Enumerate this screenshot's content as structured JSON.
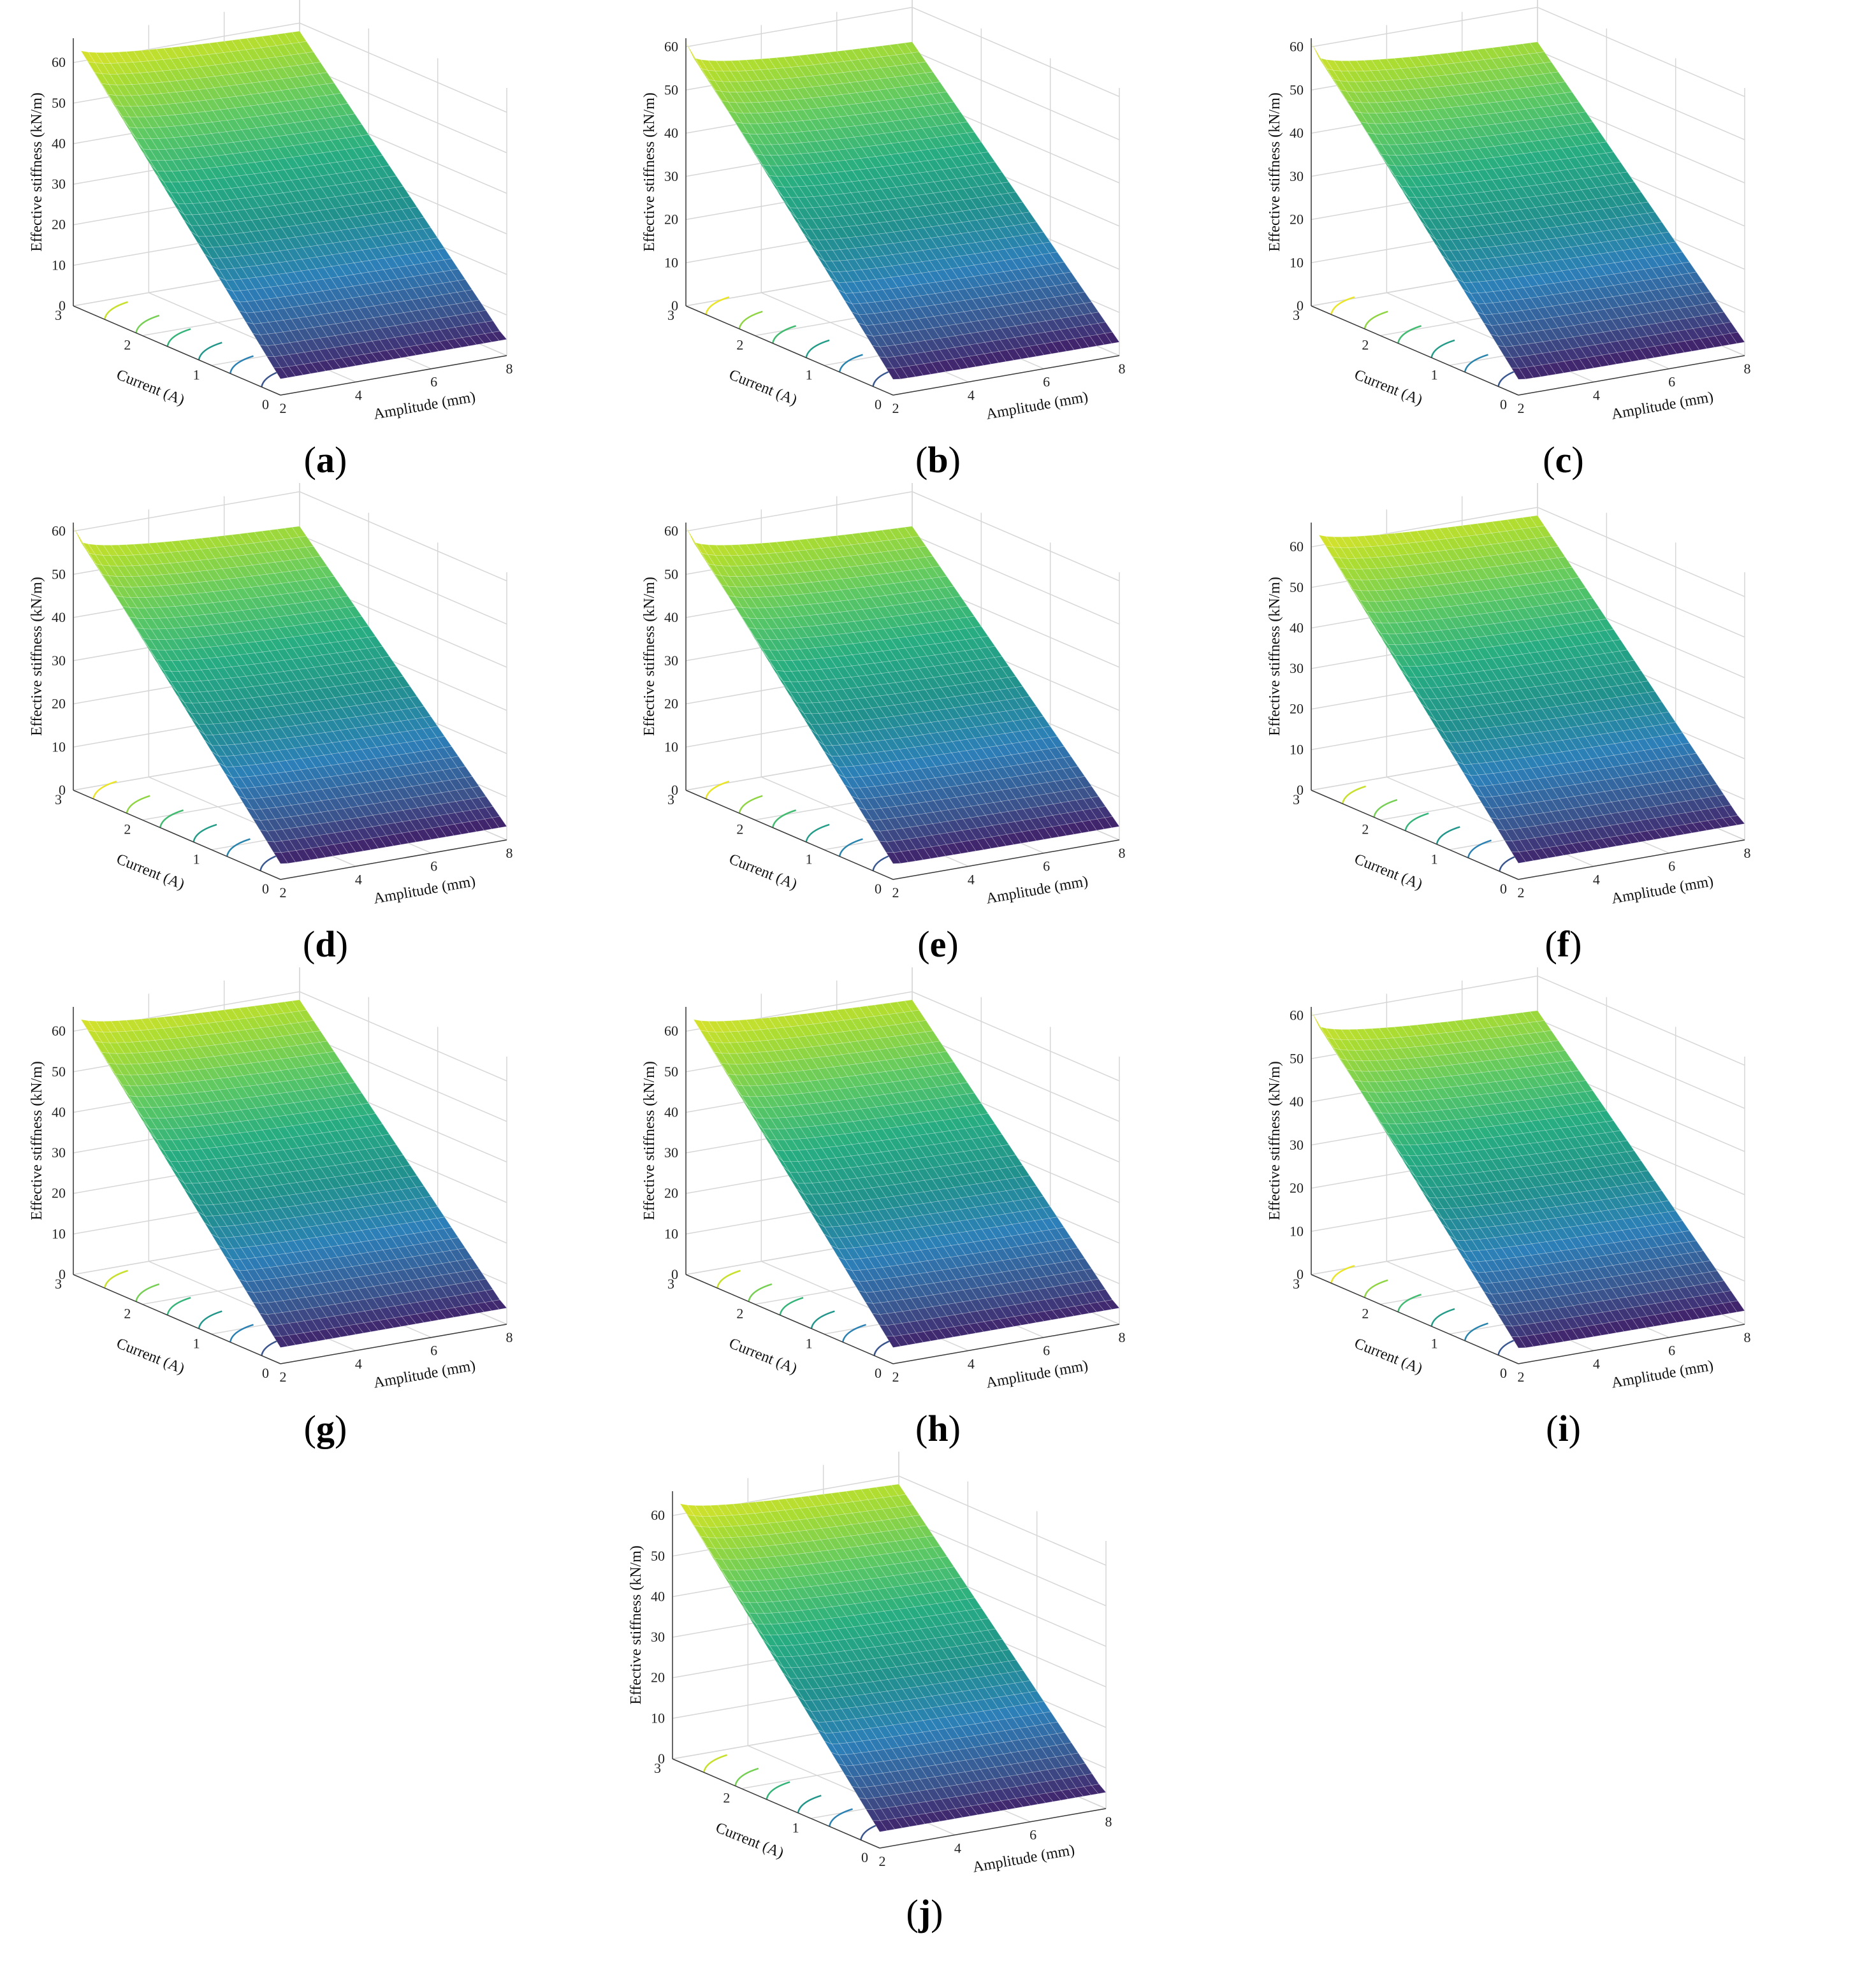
{
  "colors": {
    "grid": "#d6d6d6",
    "axis": "#3a3a3a",
    "mesh_line": "#ffffff",
    "colormap": [
      "#440154",
      "#3b528b",
      "#2c7fb8",
      "#21918c",
      "#27ad81",
      "#5ec962",
      "#aadc32",
      "#fde725"
    ]
  },
  "chart_data": [
    {
      "panel_label": "a",
      "type": "surface3d",
      "zlabel": "Effective stiffness (kN/m)",
      "ylabel": "Current (A)",
      "xlabel": "Amplitude (mm)",
      "x_ticks": [
        2,
        4,
        6,
        8
      ],
      "y_ticks": [
        0,
        1,
        2,
        3
      ],
      "z_ticks": [
        0,
        10,
        20,
        30,
        40,
        50,
        60
      ],
      "xlim": [
        2,
        8
      ],
      "ylim": [
        0,
        3
      ],
      "zlim": [
        0,
        66
      ],
      "corner_values": {
        "max": 66,
        "ridge_low_current_high_amplitude": 58,
        "min": 4
      }
    },
    {
      "panel_label": "b",
      "type": "surface3d",
      "zlabel": "Effective stiffness (kN/m)",
      "ylabel": "Current (A)",
      "xlabel": "Amplitude (mm)",
      "x_ticks": [
        2,
        4,
        6,
        8
      ],
      "y_ticks": [
        0,
        1,
        2,
        3
      ],
      "z_ticks": [
        0,
        10,
        20,
        30,
        40,
        50,
        60
      ],
      "xlim": [
        2,
        8
      ],
      "ylim": [
        0,
        3
      ],
      "zlim": [
        0,
        62
      ],
      "corner_values": {
        "max": 61,
        "ridge_low_current_high_amplitude": 52,
        "min": 2
      }
    },
    {
      "panel_label": "c",
      "type": "surface3d",
      "zlabel": "Effective stiffness (kN/m)",
      "ylabel": "Current (A)",
      "xlabel": "Amplitude (mm)",
      "x_ticks": [
        2,
        4,
        6,
        8
      ],
      "y_ticks": [
        0,
        1,
        2,
        3
      ],
      "z_ticks": [
        0,
        10,
        20,
        30,
        40,
        50,
        60
      ],
      "xlim": [
        2,
        8
      ],
      "ylim": [
        0,
        3
      ],
      "zlim": [
        0,
        62
      ],
      "corner_values": {
        "max": 61,
        "ridge_low_current_high_amplitude": 52,
        "min": 2
      }
    },
    {
      "panel_label": "d",
      "type": "surface3d",
      "zlabel": "Effective stiffness (kN/m)",
      "ylabel": "Current (A)",
      "xlabel": "Amplitude (mm)",
      "x_ticks": [
        2,
        4,
        6,
        8
      ],
      "y_ticks": [
        0,
        1,
        2,
        3
      ],
      "z_ticks": [
        0,
        10,
        20,
        30,
        40,
        50,
        60
      ],
      "xlim": [
        2,
        8
      ],
      "ylim": [
        0,
        62
      ],
      "zlim": [
        0,
        62
      ],
      "corner_values": {
        "max": 61,
        "ridge_low_current_high_amplitude": 52,
        "min": 2
      }
    },
    {
      "panel_label": "e",
      "type": "surface3d",
      "zlabel": "Effective stiffness (kN/m)",
      "ylabel": "Current (A)",
      "xlabel": "Amplitude (mm)",
      "x_ticks": [
        2,
        4,
        6,
        8
      ],
      "y_ticks": [
        0,
        1,
        2,
        3
      ],
      "z_ticks": [
        0,
        10,
        20,
        30,
        40,
        50,
        60
      ],
      "xlim": [
        2,
        8
      ],
      "ylim": [
        0,
        3
      ],
      "zlim": [
        0,
        62
      ],
      "corner_values": {
        "max": 61,
        "ridge_low_current_high_amplitude": 52,
        "min": 2
      }
    },
    {
      "panel_label": "f",
      "type": "surface3d",
      "zlabel": "Effective stiffness (kN/m)",
      "ylabel": "Current (A)",
      "xlabel": "Amplitude (mm)",
      "x_ticks": [
        2,
        4,
        6,
        8
      ],
      "y_ticks": [
        0,
        1,
        2,
        3
      ],
      "z_ticks": [
        0,
        10,
        20,
        30,
        40,
        50,
        60
      ],
      "xlim": [
        2,
        8
      ],
      "ylim": [
        0,
        3
      ],
      "zlim": [
        0,
        66
      ],
      "corner_values": {
        "max": 66,
        "ridge_low_current_high_amplitude": 58,
        "min": 4
      }
    },
    {
      "panel_label": "g",
      "type": "surface3d",
      "zlabel": "Effective stiffness (kN/m)",
      "ylabel": "Current (A)",
      "xlabel": "Amplitude (mm)",
      "x_ticks": [
        2,
        4,
        6,
        8
      ],
      "y_ticks": [
        0,
        1,
        2,
        3
      ],
      "z_ticks": [
        0,
        10,
        20,
        30,
        40,
        50,
        60
      ],
      "xlim": [
        2,
        8
      ],
      "ylim": [
        0,
        3
      ],
      "zlim": [
        0,
        66
      ],
      "corner_values": {
        "max": 66,
        "ridge_low_current_high_amplitude": 58,
        "min": 4
      }
    },
    {
      "panel_label": "h",
      "type": "surface3d",
      "zlabel": "Effective stiffness (kN/m)",
      "ylabel": "Current (A)",
      "xlabel": "Amplitude (mm)",
      "x_ticks": [
        2,
        4,
        6,
        8
      ],
      "y_ticks": [
        0,
        1,
        2,
        3
      ],
      "z_ticks": [
        0,
        10,
        20,
        30,
        40,
        50,
        60
      ],
      "xlim": [
        2,
        8
      ],
      "ylim": [
        0,
        3
      ],
      "zlim": [
        0,
        66
      ],
      "corner_values": {
        "max": 66,
        "ridge_low_current_high_amplitude": 58,
        "min": 4
      }
    },
    {
      "panel_label": "i",
      "type": "surface3d",
      "zlabel": "Effective stiffness (kN/m)",
      "ylabel": "Current (A)",
      "xlabel": "Amplitude (mm)",
      "x_ticks": [
        2,
        4,
        6,
        8
      ],
      "y_ticks": [
        0,
        1,
        2,
        3
      ],
      "z_ticks": [
        0,
        10,
        20,
        30,
        40,
        50,
        60
      ],
      "xlim": [
        2,
        8
      ],
      "ylim": [
        0,
        3
      ],
      "zlim": [
        0,
        62
      ],
      "corner_values": {
        "max": 61,
        "ridge_low_current_high_amplitude": 52,
        "min": 2
      }
    },
    {
      "panel_label": "j",
      "type": "surface3d",
      "zlabel": "Effective stiffness (kN/m)",
      "ylabel": "Current (A)",
      "xlabel": "Amplitude (mm)",
      "x_ticks": [
        2,
        4,
        6,
        8
      ],
      "y_ticks": [
        0,
        1,
        2,
        3
      ],
      "z_ticks": [
        0,
        10,
        20,
        30,
        40,
        50,
        60
      ],
      "xlim": [
        2,
        8
      ],
      "ylim": [
        0,
        3
      ],
      "zlim": [
        0,
        66
      ],
      "corner_values": {
        "max": 66,
        "ridge_low_current_high_amplitude": 58,
        "min": 4
      }
    }
  ]
}
